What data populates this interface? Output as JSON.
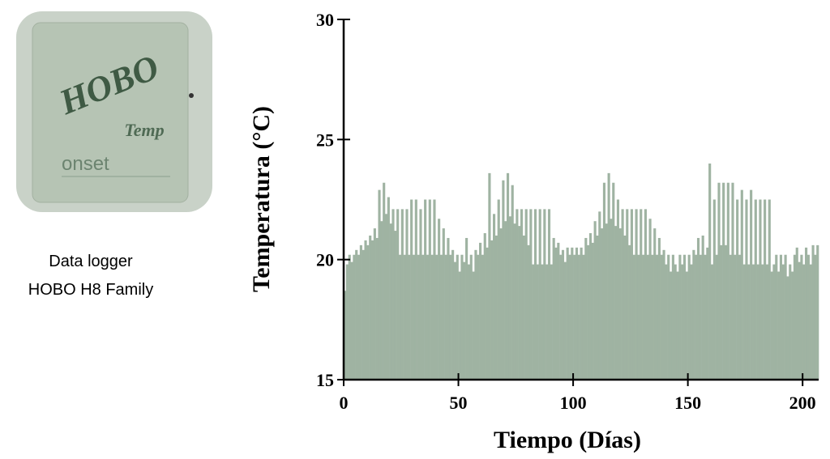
{
  "device": {
    "labels": [
      "HOBO",
      "Temp",
      "onset"
    ],
    "caption": [
      "Data logger",
      "HOBO H8 Family"
    ]
  },
  "chart_data": {
    "type": "bar",
    "xlabel": "Tiempo (Días)",
    "ylabel": "Temperatura (°C)",
    "color": "#9fb3a2",
    "xlim": [
      0,
      207
    ],
    "xticks": [
      0,
      50,
      100,
      150,
      200
    ],
    "ylim": [
      15,
      30
    ],
    "yticks": [
      15,
      20,
      25,
      30
    ],
    "x": [
      0,
      1,
      2,
      3,
      4,
      5,
      6,
      7,
      8,
      9,
      10,
      11,
      12,
      13,
      14,
      15,
      16,
      17,
      18,
      19,
      20,
      21,
      22,
      23,
      24,
      25,
      26,
      27,
      28,
      29,
      30,
      31,
      32,
      33,
      34,
      35,
      36,
      37,
      38,
      39,
      40,
      41,
      42,
      43,
      44,
      45,
      46,
      47,
      48,
      49,
      50,
      51,
      52,
      53,
      54,
      55,
      56,
      57,
      58,
      59,
      60,
      61,
      62,
      63,
      64,
      65,
      66,
      67,
      68,
      69,
      70,
      71,
      72,
      73,
      74,
      75,
      76,
      77,
      78,
      79,
      80,
      81,
      82,
      83,
      84,
      85,
      86,
      87,
      88,
      89,
      90,
      91,
      92,
      93,
      94,
      95,
      96,
      97,
      98,
      99,
      100,
      101,
      102,
      103,
      104,
      105,
      106,
      107,
      108,
      109,
      110,
      111,
      112,
      113,
      114,
      115,
      116,
      117,
      118,
      119,
      120,
      121,
      122,
      123,
      124,
      125,
      126,
      127,
      128,
      129,
      130,
      131,
      132,
      133,
      134,
      135,
      136,
      137,
      138,
      139,
      140,
      141,
      142,
      143,
      144,
      145,
      146,
      147,
      148,
      149,
      150,
      151,
      152,
      153,
      154,
      155,
      156,
      157,
      158,
      159,
      160,
      161,
      162,
      163,
      164,
      165,
      166,
      167,
      168,
      169,
      170,
      171,
      172,
      173,
      174,
      175,
      176,
      177,
      178,
      179,
      180,
      181,
      182,
      183,
      184,
      185,
      186,
      187,
      188,
      189,
      190,
      191,
      192,
      193,
      194,
      195,
      196,
      197,
      198,
      199,
      200,
      201,
      202,
      203,
      204,
      205,
      206
    ],
    "values": [
      18.7,
      19.8,
      20.2,
      19.9,
      20.2,
      20.4,
      20.2,
      20.6,
      20.4,
      20.8,
      20.6,
      21.0,
      20.8,
      21.3,
      20.9,
      22.9,
      21.6,
      23.2,
      21.9,
      22.6,
      21.5,
      22.1,
      21.2,
      22.1,
      20.2,
      22.1,
      20.2,
      22.1,
      20.2,
      22.5,
      20.2,
      22.5,
      20.2,
      22.1,
      20.2,
      22.5,
      20.2,
      22.5,
      20.2,
      22.5,
      20.2,
      21.7,
      20.2,
      21.3,
      20.2,
      20.9,
      20.2,
      20.4,
      19.9,
      20.2,
      19.5,
      20.2,
      19.9,
      20.9,
      19.8,
      20.2,
      19.5,
      20.4,
      20.2,
      20.7,
      20.2,
      21.1,
      20.5,
      23.6,
      20.8,
      21.9,
      21.0,
      22.5,
      21.3,
      23.3,
      21.6,
      23.6,
      21.8,
      23.1,
      21.5,
      22.1,
      21.4,
      22.1,
      21.0,
      22.1,
      20.6,
      22.1,
      19.8,
      22.1,
      19.8,
      22.1,
      19.8,
      22.1,
      19.8,
      22.1,
      19.8,
      20.9,
      20.5,
      20.7,
      20.2,
      20.4,
      19.9,
      20.5,
      20.2,
      20.5,
      20.2,
      20.5,
      20.2,
      20.5,
      20.2,
      20.9,
      20.6,
      21.1,
      20.7,
      21.6,
      21.0,
      22.0,
      21.3,
      23.2,
      21.5,
      23.6,
      21.7,
      23.2,
      21.4,
      22.5,
      21.3,
      22.1,
      21.0,
      22.1,
      20.6,
      22.1,
      20.2,
      22.1,
      20.2,
      22.1,
      20.2,
      22.1,
      20.2,
      21.7,
      20.2,
      21.3,
      20.2,
      20.9,
      20.2,
      20.4,
      19.8,
      20.2,
      19.5,
      20.2,
      19.8,
      19.5,
      20.2,
      19.8,
      20.2,
      19.5,
      20.2,
      19.8,
      20.4,
      20.2,
      20.9,
      20.2,
      21.0,
      20.2,
      20.5,
      24.0,
      19.8,
      22.5,
      20.2,
      23.2,
      20.6,
      23.2,
      20.6,
      23.2,
      20.2,
      23.2,
      20.2,
      22.5,
      20.2,
      22.9,
      19.8,
      22.5,
      19.8,
      22.9,
      19.8,
      22.5,
      19.8,
      22.5,
      19.8,
      22.5,
      19.8,
      22.5,
      19.5,
      19.8,
      20.2,
      19.5,
      20.2,
      19.8,
      20.2,
      19.3,
      19.8,
      19.5,
      20.2,
      20.5,
      19.9,
      20.2,
      19.8,
      20.5,
      20.2,
      19.8,
      20.6,
      20.2,
      20.6
    ]
  }
}
